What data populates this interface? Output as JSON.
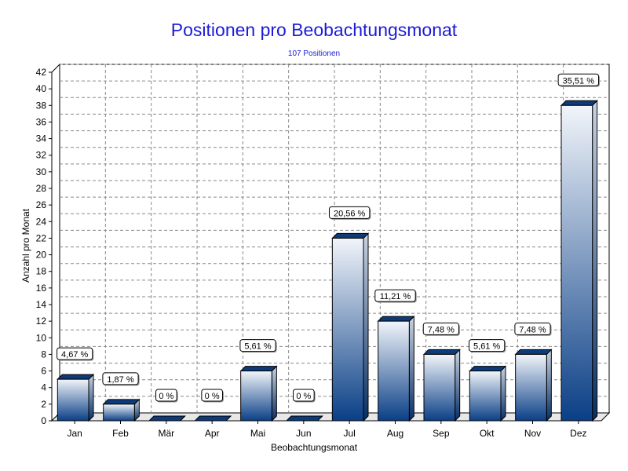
{
  "chart_data": {
    "type": "bar",
    "title": "Positionen pro Beobachtungsmonat",
    "subtitle": "107 Positionen",
    "xlabel": "Beobachtungsmonat",
    "ylabel": "Anzahl pro Monat",
    "categories": [
      "Jan",
      "Feb",
      "Mär",
      "Apr",
      "Mai",
      "Jun",
      "Jul",
      "Aug",
      "Sep",
      "Okt",
      "Nov",
      "Dez"
    ],
    "values": [
      5,
      2,
      0,
      0,
      6,
      0,
      22,
      12,
      8,
      6,
      8,
      38
    ],
    "labels": [
      "4,67 %",
      "1,87 %",
      "0 %",
      "0 %",
      "5,61 %",
      "0 %",
      "20,56 %",
      "11,21 %",
      "7,48 %",
      "5,61 %",
      "7,48 %",
      "35,51 %"
    ],
    "ylim": [
      0,
      42
    ],
    "ytick_step": 2,
    "grid": true,
    "bar_color_top": "#f2f5fa",
    "bar_color_bottom": "#0a3f86",
    "bar_cap_color": "#0d3b7a"
  }
}
